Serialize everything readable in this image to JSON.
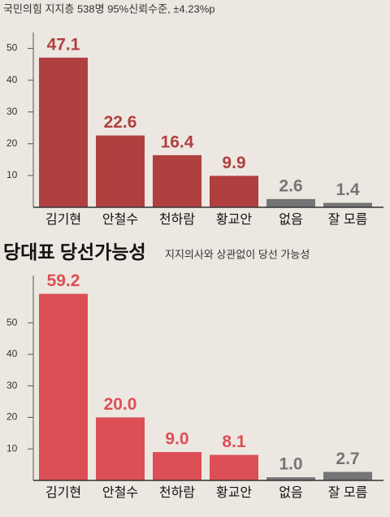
{
  "chart_data": [
    {
      "type": "bar",
      "subtitle": "국민의힘 지지층 538명  95%신뢰수준, ±4.23%p",
      "categories": [
        "김기현",
        "안철수",
        "천하람",
        "황교안",
        "없음",
        "잘 모름"
      ],
      "values": [
        47.1,
        22.6,
        16.4,
        9.9,
        2.6,
        1.4
      ],
      "colors": [
        "#b0403f",
        "#b0403f",
        "#b0403f",
        "#b0403f",
        "#757575",
        "#757575"
      ],
      "ylim": [
        0,
        55
      ],
      "yticks": [
        10,
        20,
        30,
        40,
        50
      ]
    },
    {
      "type": "bar",
      "title": "당대표 당선가능성",
      "subtitle": "지지의사와 상관없이 당선 가능성",
      "categories": [
        "김기현",
        "안철수",
        "천하람",
        "황교안",
        "없음",
        "잘 모름"
      ],
      "values": [
        59.2,
        20.0,
        9.0,
        8.1,
        1.0,
        2.7
      ],
      "value_labels": [
        "59.2",
        "20.0",
        "9.0",
        "8.1",
        "1.0",
        "2.7"
      ],
      "colors": [
        "#dc4f55",
        "#dc4f55",
        "#dc4f55",
        "#dc4f55",
        "#757575",
        "#757575"
      ],
      "ylim": [
        0,
        65
      ],
      "yticks": [
        10,
        20,
        30,
        40,
        50
      ]
    }
  ]
}
